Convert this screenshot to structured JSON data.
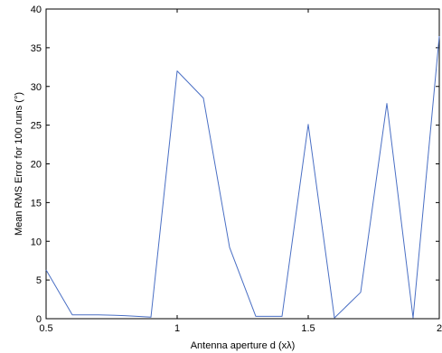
{
  "chart_data": {
    "type": "line",
    "title": "",
    "xlabel": "Antenna aperture d (xλ)",
    "ylabel": "Mean RMS Error for 100 runs (°)",
    "xlim": [
      0.5,
      2
    ],
    "ylim": [
      0,
      40
    ],
    "xticks": [
      0.5,
      1,
      1.5,
      2
    ],
    "xtick_labels": [
      "0.5",
      "1",
      "1.5",
      "2"
    ],
    "yticks": [
      0,
      5,
      10,
      15,
      20,
      25,
      30,
      35,
      40
    ],
    "ytick_labels": [
      "0",
      "5",
      "10",
      "15",
      "20",
      "25",
      "30",
      "35",
      "40"
    ],
    "grid": false,
    "series": [
      {
        "color": "#4a6fc4",
        "x": [
          0.5,
          0.6,
          0.7,
          0.8,
          0.9,
          1.0,
          1.1,
          1.2,
          1.3,
          1.4,
          1.5,
          1.6,
          1.7,
          1.8,
          1.9,
          2.0
        ],
        "y": [
          6.3,
          0.5,
          0.5,
          0.4,
          0.2,
          32.0,
          28.5,
          9.2,
          0.3,
          0.3,
          25.1,
          0.1,
          3.4,
          27.8,
          0.1,
          36.5
        ]
      }
    ]
  }
}
